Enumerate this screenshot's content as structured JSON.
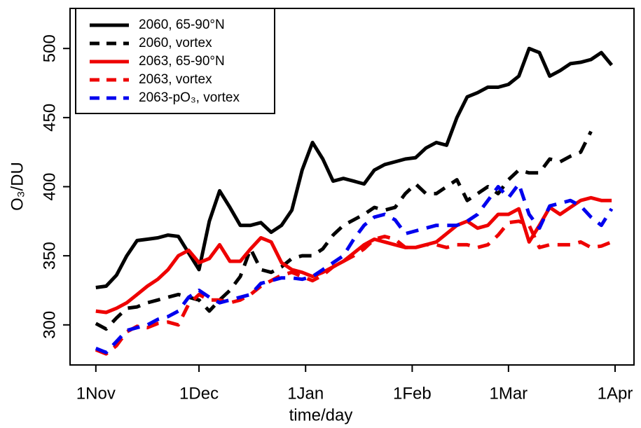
{
  "chart_data": {
    "type": "line",
    "x_label": "time/day",
    "y_label": "O₃/DU",
    "x": [
      0,
      3,
      6,
      9,
      12,
      15,
      18,
      21,
      24,
      27,
      30,
      33,
      36,
      39,
      42,
      45,
      48,
      51,
      54,
      57,
      60,
      63,
      66,
      69,
      72,
      75,
      78,
      81,
      84,
      87,
      90,
      93,
      96,
      99,
      102,
      105,
      108,
      111,
      114,
      117,
      120,
      123,
      126,
      129,
      132,
      135,
      138,
      141,
      144,
      147,
      150
    ],
    "xlim": [
      -7.5,
      156.5
    ],
    "xticks": [
      {
        "value": 0,
        "label": "1Nov"
      },
      {
        "value": 30,
        "label": "1Dec"
      },
      {
        "value": 61,
        "label": "1Jan"
      },
      {
        "value": 92,
        "label": "1Feb"
      },
      {
        "value": 120,
        "label": "1Mar"
      },
      {
        "value": 151,
        "label": "1Apr"
      }
    ],
    "ylim": [
      271,
      529
    ],
    "yticks": [
      300,
      350,
      400,
      450,
      500
    ],
    "legend": "top-left",
    "series": [
      {
        "name": "2060, 65-90°N",
        "color": "#000000",
        "dash": false,
        "values": [
          327,
          328,
          336,
          350,
          361,
          362,
          363,
          365,
          364,
          352,
          340,
          375,
          397,
          385,
          372,
          372,
          374,
          367,
          372,
          383,
          412,
          432,
          420,
          404,
          406,
          404,
          402,
          412,
          416,
          418,
          420,
          421,
          428,
          432,
          430,
          450,
          465,
          468,
          472,
          472,
          474,
          480,
          500,
          497,
          480,
          484,
          489,
          490,
          492,
          497,
          488
        ]
      },
      {
        "name": "2060, vortex",
        "color": "#000000",
        "dash": true,
        "values": [
          301,
          297,
          305,
          312,
          313,
          316,
          318,
          320,
          322,
          320,
          318,
          310,
          318,
          325,
          335,
          355,
          340,
          338,
          342,
          348,
          350,
          350,
          355,
          365,
          372,
          376,
          380,
          385,
          383,
          385,
          395,
          402,
          395,
          395,
          400,
          405,
          390,
          395,
          400,
          395,
          405,
          412,
          410,
          410,
          420,
          418,
          422,
          425,
          440,
          null,
          null
        ]
      },
      {
        "name": "2063, 65-90°N",
        "color": "#ee0000",
        "dash": false,
        "values": [
          310,
          309,
          312,
          316,
          322,
          328,
          333,
          340,
          350,
          354,
          345,
          348,
          358,
          346,
          346,
          355,
          363,
          360,
          345,
          340,
          338,
          335,
          338,
          342,
          346,
          352,
          358,
          362,
          360,
          358,
          356,
          356,
          358,
          360,
          366,
          372,
          375,
          370,
          372,
          380,
          380,
          384,
          360,
          372,
          385,
          380,
          385,
          390,
          392,
          390,
          390
        ]
      },
      {
        "name": "2063, vortex",
        "color": "#ee0000",
        "dash": true,
        "values": [
          282,
          279,
          285,
          295,
          299,
          298,
          301,
          302,
          300,
          315,
          322,
          318,
          318,
          316,
          318,
          322,
          328,
          332,
          336,
          338,
          335,
          332,
          336,
          342,
          346,
          350,
          355,
          362,
          364,
          362,
          356,
          356,
          358,
          358,
          356,
          358,
          358,
          356,
          358,
          365,
          374,
          375,
          372,
          356,
          358,
          358,
          358,
          360,
          356,
          357,
          360
        ]
      },
      {
        "name": "2063-pO₃, vortex",
        "color": "#0000ee",
        "dash": true,
        "values": [
          283,
          280,
          288,
          296,
          298,
          300,
          304,
          306,
          310,
          320,
          325,
          320,
          316,
          318,
          320,
          322,
          330,
          332,
          334,
          334,
          333,
          335,
          340,
          345,
          350,
          362,
          372,
          378,
          380,
          376,
          366,
          368,
          370,
          372,
          372,
          372,
          375,
          380,
          390,
          400,
          392,
          402,
          380,
          370,
          386,
          388,
          390,
          386,
          378,
          372,
          384
        ]
      }
    ]
  }
}
